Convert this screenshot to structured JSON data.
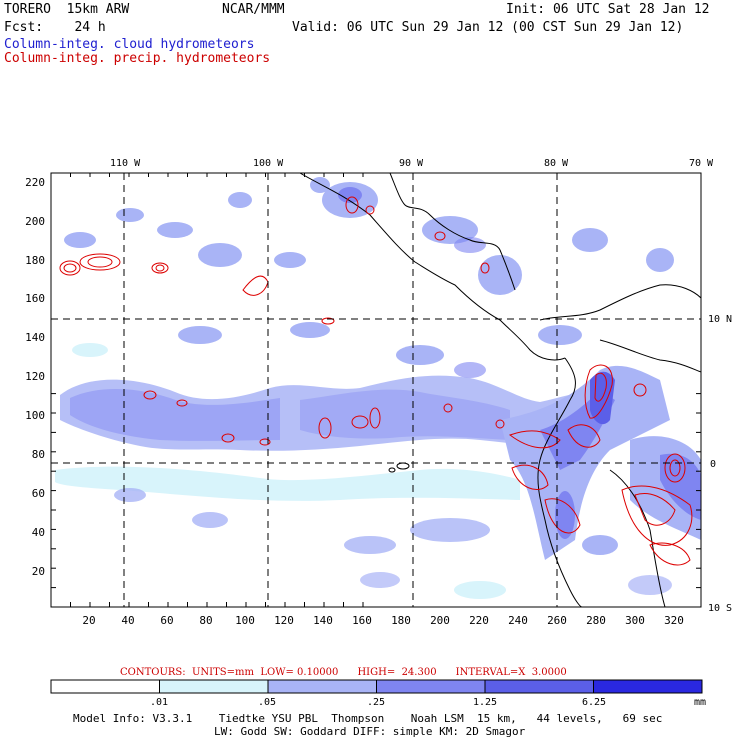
{
  "header": {
    "model": "TORERO  15km ARW",
    "org": "NCAR/MMM",
    "init": "Init: 06 UTC Sat 28 Jan 12",
    "fcst": "Fcst:    24 h",
    "valid": "Valid: 06 UTC Sun 29 Jan 12 (00 CST Sun 29 Jan 12)",
    "field1": "Column-integ. cloud hydrometeors",
    "field2": "Column-integ. precip. hydrometeors"
  },
  "map": {
    "lon_labels": [
      "110 W",
      "100 W",
      "90 W",
      "80 W",
      "70 W"
    ],
    "lat_labels": [
      "10 N",
      "0",
      "10 S"
    ],
    "x_ticks": [
      "20",
      "40",
      "60",
      "80",
      "100",
      "120",
      "140",
      "160",
      "180",
      "200",
      "220",
      "240",
      "260",
      "280",
      "300",
      "320"
    ],
    "y_ticks": [
      "20",
      "40",
      "60",
      "80",
      "100",
      "120",
      "140",
      "160",
      "180",
      "200",
      "220"
    ]
  },
  "contours_line": "CONTOURS:  UNITS=mm  LOW= 0.10000      HIGH=  24.300      INTERVAL=X  3.0000",
  "colorbar": {
    "labels": [
      ".01",
      ".05",
      ".25",
      "1.25",
      "6.25"
    ],
    "unit": "mm",
    "colors": [
      "#ffffff",
      "#d8f4fb",
      "#a9b4f6",
      "#7f85f1",
      "#5b5fe8",
      "#2a28e0"
    ]
  },
  "footer": {
    "line1": "Model Info: V3.3.1    Tiedtke YSU PBL  Thompson    Noah LSM  15 km,   44 levels,   69 sec",
    "line2": "LW: Godd SW: Goddard DIFF: simple KM: 2D Smagor"
  },
  "colors": {
    "cloud_label": "#2020d0",
    "precip_label": "#cc0000",
    "contour": "#dd0000"
  }
}
